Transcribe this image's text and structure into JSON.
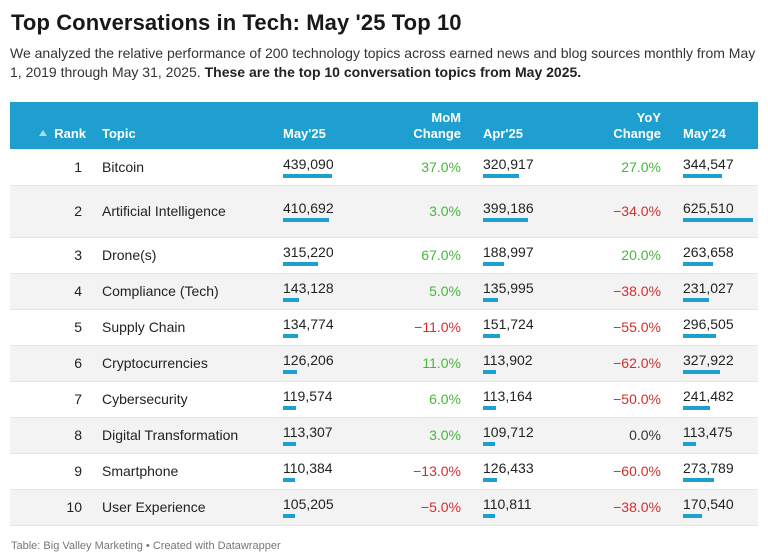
{
  "header": {
    "title": "Top Conversations in Tech: May '25 Top 10",
    "description_plain": "We analyzed the relative performance of 200 technology topics across earned news and blog sources monthly from May 1, 2019 through May 31, 2025.",
    "description_bold": "These are the top 10 conversation topics from May 2025."
  },
  "table": {
    "columns": {
      "rank": "Rank",
      "topic": "Topic",
      "may25": "May'25",
      "mom_line1": "MoM",
      "mom_line2": "Change",
      "apr25": "Apr'25",
      "yoy_line1": "YoY",
      "yoy_line2": "Change",
      "may24": "May'24"
    },
    "rows": [
      {
        "rank": "1",
        "topic": "Bitcoin",
        "may25": "439,090",
        "mom": "37.0%",
        "apr25": "320,917",
        "yoy": "27.0%",
        "may24": "344,547"
      },
      {
        "rank": "2",
        "topic": "Artificial Intelligence",
        "may25": "410,692",
        "mom": "3.0%",
        "apr25": "399,186",
        "yoy": "−34.0%",
        "may24": "625,510"
      },
      {
        "rank": "3",
        "topic": "Drone(s)",
        "may25": "315,220",
        "mom": "67.0%",
        "apr25": "188,997",
        "yoy": "20.0%",
        "may24": "263,658"
      },
      {
        "rank": "4",
        "topic": "Compliance (Tech)",
        "may25": "143,128",
        "mom": "5.0%",
        "apr25": "135,995",
        "yoy": "−38.0%",
        "may24": "231,027"
      },
      {
        "rank": "5",
        "topic": "Supply Chain",
        "may25": "134,774",
        "mom": "−11.0%",
        "apr25": "151,724",
        "yoy": "−55.0%",
        "may24": "296,505"
      },
      {
        "rank": "6",
        "topic": "Cryptocurrencies",
        "may25": "126,206",
        "mom": "11.0%",
        "apr25": "113,902",
        "yoy": "−62.0%",
        "may24": "327,922"
      },
      {
        "rank": "7",
        "topic": "Cybersecurity",
        "may25": "119,574",
        "mom": "6.0%",
        "apr25": "113,164",
        "yoy": "−50.0%",
        "may24": "241,482"
      },
      {
        "rank": "8",
        "topic": "Digital Transformation",
        "may25": "113,307",
        "mom": "3.0%",
        "apr25": "109,712",
        "yoy": "0.0%",
        "may24": "113,475"
      },
      {
        "rank": "9",
        "topic": "Smartphone",
        "may25": "110,384",
        "mom": "−13.0%",
        "apr25": "126,433",
        "yoy": "−60.0%",
        "may24": "273,789"
      },
      {
        "rank": "10",
        "topic": "User Experience",
        "may25": "105,205",
        "mom": "−5.0%",
        "apr25": "110,811",
        "yoy": "−38.0%",
        "may24": "170,540"
      }
    ]
  },
  "chart_data": {
    "type": "table",
    "title": "Top Conversations in Tech: May '25 Top 10",
    "bar_columns": [
      "May'25",
      "Apr'25",
      "May'24"
    ],
    "bar_max": 625510,
    "colors": {
      "header": "#1f9fd0",
      "bar": "#1f9fd0",
      "positive": "#46b83a",
      "negative": "#d1302f"
    },
    "series": [
      {
        "name": "May'25",
        "values": [
          439090,
          410692,
          315220,
          143128,
          134774,
          126206,
          119574,
          113307,
          110384,
          105205
        ]
      },
      {
        "name": "MoM Change",
        "values": [
          37.0,
          3.0,
          67.0,
          5.0,
          -11.0,
          11.0,
          6.0,
          3.0,
          -13.0,
          -5.0
        ]
      },
      {
        "name": "Apr'25",
        "values": [
          320917,
          399186,
          188997,
          135995,
          151724,
          113902,
          113164,
          109712,
          126433,
          110811
        ]
      },
      {
        "name": "YoY Change",
        "values": [
          27.0,
          -34.0,
          20.0,
          -38.0,
          -55.0,
          -62.0,
          -50.0,
          0.0,
          -60.0,
          -38.0
        ]
      },
      {
        "name": "May'24",
        "values": [
          344547,
          625510,
          263658,
          231027,
          296505,
          327922,
          241482,
          113475,
          273789,
          170540
        ]
      }
    ],
    "categories": [
      "Bitcoin",
      "Artificial Intelligence",
      "Drone(s)",
      "Compliance (Tech)",
      "Supply Chain",
      "Cryptocurrencies",
      "Cybersecurity",
      "Digital Transformation",
      "Smartphone",
      "User Experience"
    ]
  },
  "footer": {
    "text": "Table: Big Valley Marketing • Created with Datawrapper"
  }
}
